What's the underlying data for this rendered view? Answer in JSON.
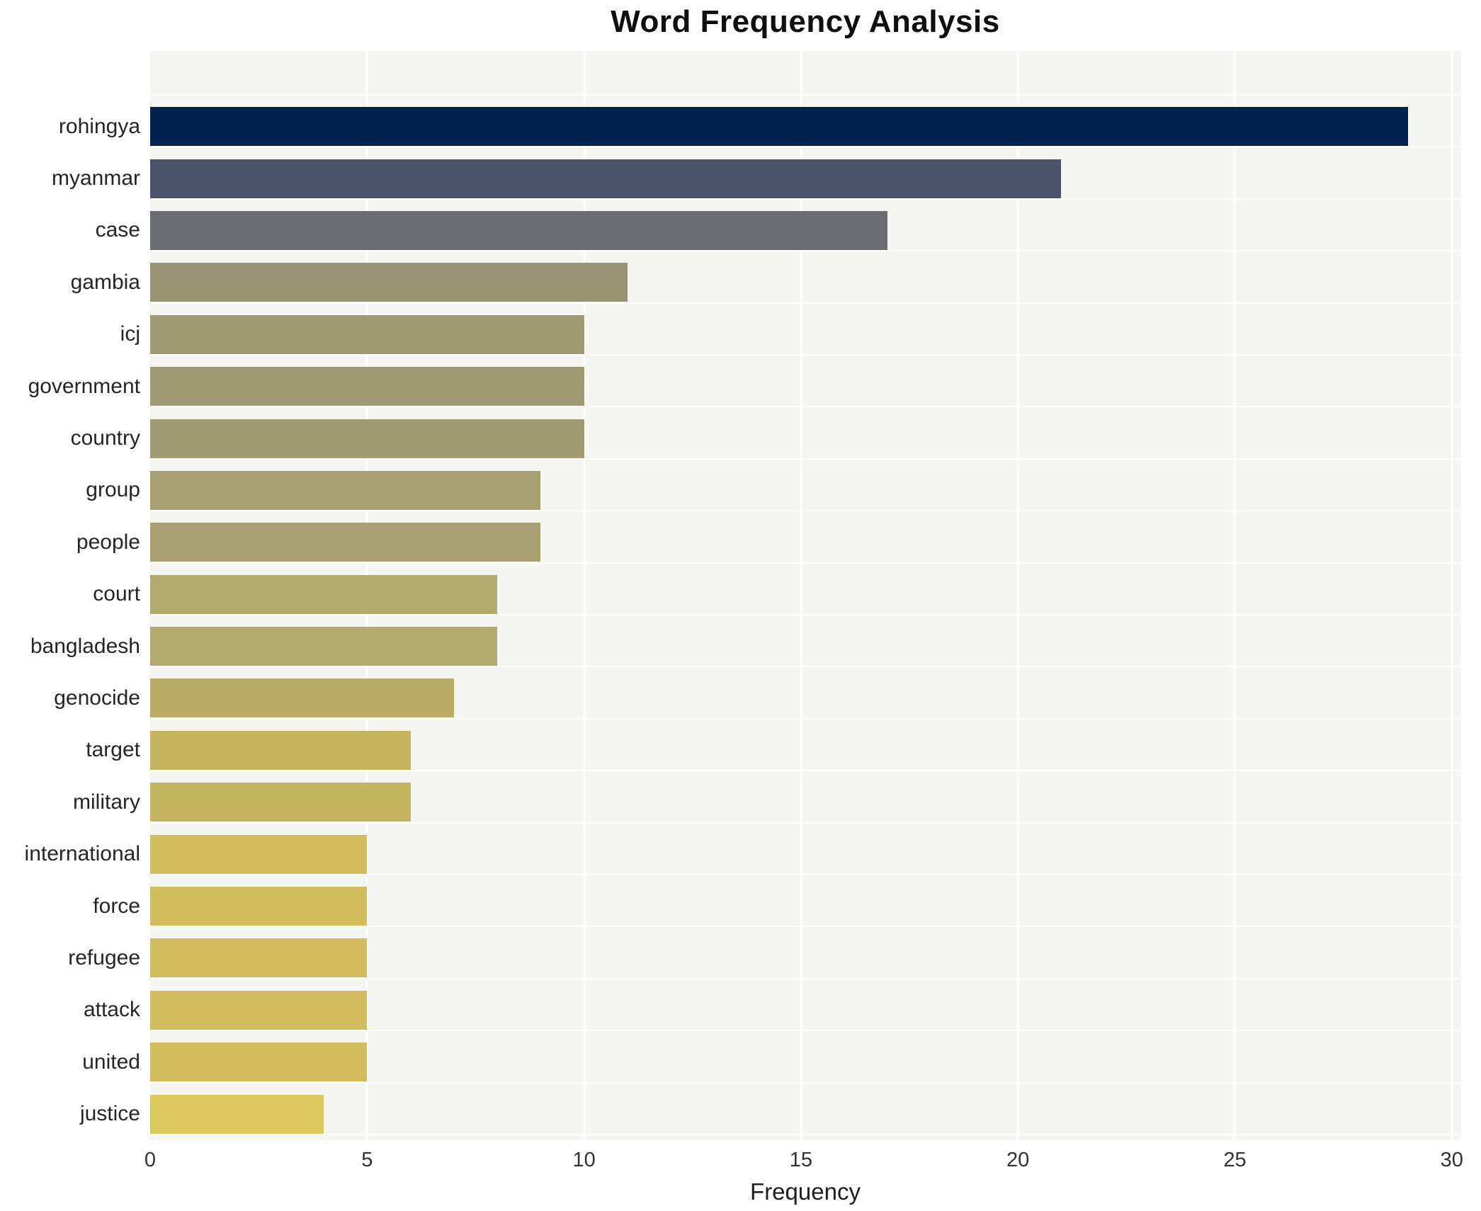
{
  "page": {
    "background": "#ffffff"
  },
  "chart_data": {
    "type": "bar",
    "orientation": "horizontal",
    "title": "Word Frequency Analysis",
    "xlabel": "Frequency",
    "ylabel": "",
    "categories": [
      "rohingya",
      "myanmar",
      "case",
      "gambia",
      "icj",
      "government",
      "country",
      "group",
      "people",
      "court",
      "bangladesh",
      "genocide",
      "target",
      "military",
      "international",
      "force",
      "refugee",
      "attack",
      "united",
      "justice"
    ],
    "values": [
      29,
      21,
      17,
      11,
      10,
      10,
      10,
      9,
      9,
      8,
      8,
      7,
      6,
      6,
      5,
      5,
      5,
      5,
      5,
      4
    ],
    "bar_colors": [
      "#00224e",
      "#4a536b",
      "#696c71",
      "#989274",
      "#9f9a74",
      "#9f9a74",
      "#9f9a74",
      "#a8a072",
      "#a8a072",
      "#b2a96e",
      "#b2a96e",
      "#bcab66",
      "#c6b560",
      "#c6b560",
      "#d1bc5e",
      "#d1bc5e",
      "#d1bc5e",
      "#d1bc5e",
      "#d1bc5e",
      "#dbc85c"
    ],
    "xlim": [
      0,
      30.2
    ],
    "xticks": [
      0,
      5,
      10,
      15,
      20,
      25,
      30
    ],
    "grid": true,
    "legend_position": "none",
    "plot_background": "#f5f5f2",
    "gridline_color": "#ffffff"
  }
}
